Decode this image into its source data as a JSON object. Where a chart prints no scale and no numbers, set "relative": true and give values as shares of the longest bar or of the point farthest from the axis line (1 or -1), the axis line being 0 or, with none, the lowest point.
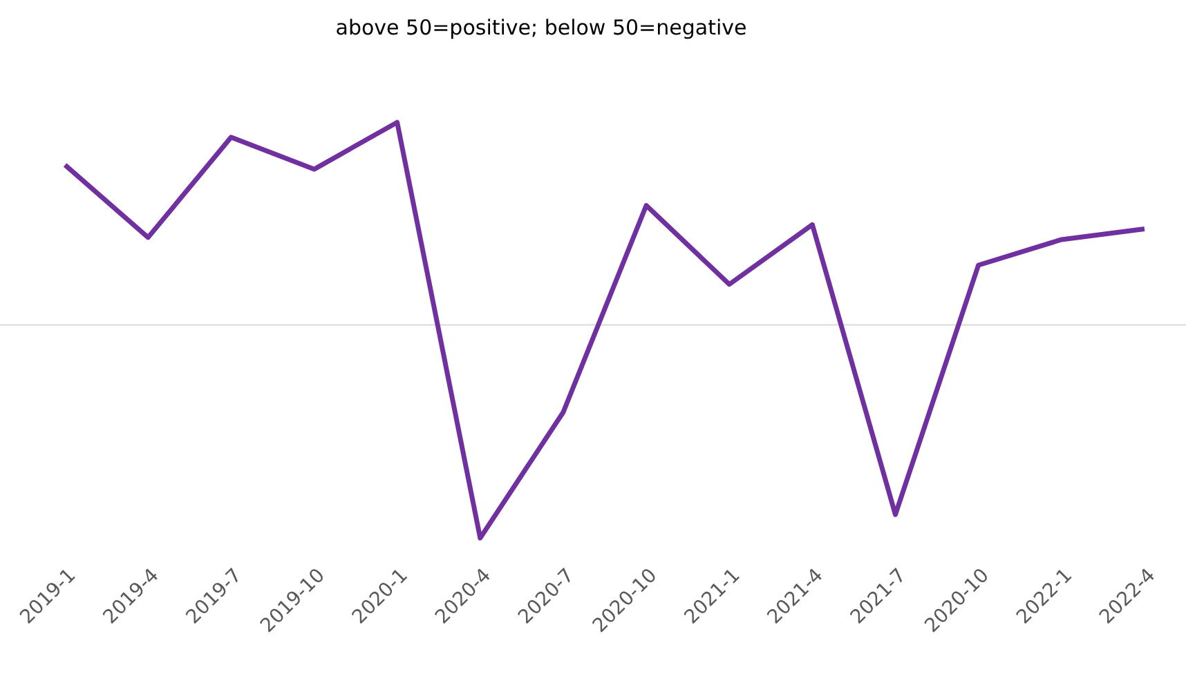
{
  "chart_data": {
    "type": "line",
    "title": "above 50=positive; below 50=negative",
    "relative": true,
    "categories": [
      "2019-1",
      "2019-4",
      "2019-7",
      "2019-10",
      "2020-1",
      "2020-4",
      "2020-7",
      "2020-10",
      "2021-1",
      "2021-4",
      "2021-7",
      "2020-10",
      "2022-1",
      "2022-4"
    ],
    "series": [
      {
        "color": "#7030a0",
        "values": [
          0.75,
          0.41,
          0.88,
          0.73,
          0.95,
          -1,
          -0.41,
          0.56,
          0.19,
          0.47,
          -0.89,
          0.28,
          0.4,
          0.45
        ]
      }
    ],
    "ref_lines": [
      {
        "axis": "y",
        "value": 0,
        "color": "#d9d9d9"
      }
    ],
    "grid": false,
    "marker": "none",
    "line_style": "solid"
  }
}
